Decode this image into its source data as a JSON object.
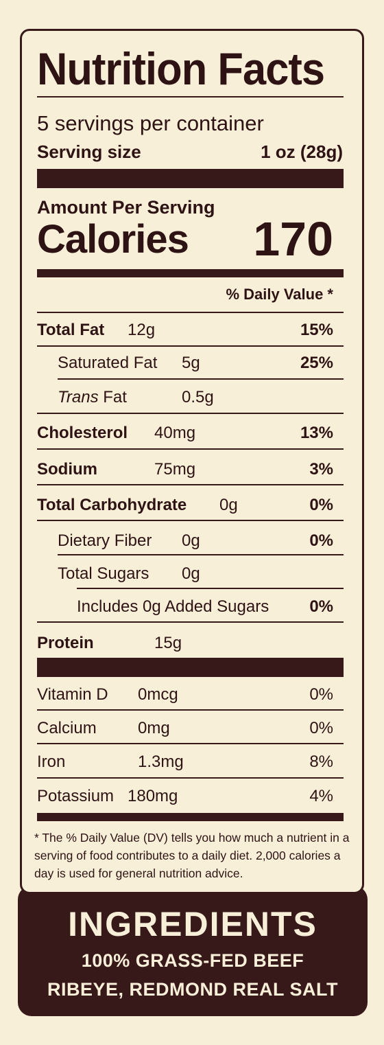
{
  "label": {
    "title": "Nutrition Facts",
    "servings_per_container": "5 servings per container",
    "serving_size_label": "Serving size",
    "serving_size_value": "1 oz (28g)",
    "amount_per_serving": "Amount Per Serving",
    "calories_label": "Calories",
    "calories_value": "170",
    "daily_value_header": "% Daily Value *",
    "nutrients": [
      {
        "name": "Total Fat",
        "amount": "12g",
        "dv": "15%"
      },
      {
        "name": "Saturated Fat",
        "amount": "5g",
        "dv": "25%"
      },
      {
        "name_italic": "Trans",
        "name_rest": " Fat",
        "amount": "0.5g",
        "dv": ""
      },
      {
        "name": "Cholesterol",
        "amount": "40mg",
        "dv": "13%"
      },
      {
        "name": "Sodium",
        "amount": "75mg",
        "dv": "3%"
      },
      {
        "name": "Total Carbohydrate",
        "amount": "0g",
        "dv": "0%"
      },
      {
        "name": "Dietary Fiber",
        "amount": "0g",
        "dv": "0%"
      },
      {
        "name": "Total Sugars",
        "amount": "0g",
        "dv": ""
      },
      {
        "name": "Includes 0g Added Sugars",
        "amount": "",
        "dv": "0%"
      },
      {
        "name": "Protein",
        "amount": "15g",
        "dv": ""
      }
    ],
    "vitamins": [
      {
        "name": "Vitamin D",
        "amount": "0mcg",
        "dv": "0%"
      },
      {
        "name": "Calcium",
        "amount": "0mg",
        "dv": "0%"
      },
      {
        "name": "Iron",
        "amount": "1.3mg",
        "dv": "8%"
      },
      {
        "name": "Potassium",
        "amount": "180mg",
        "dv": "4%"
      }
    ],
    "footnote": "* The % Daily Value (DV) tells you how much a nutrient in a serving of food contributes to a daily diet. 2,000 calories a day is used for general nutrition advice."
  },
  "ingredients": {
    "title": "INGREDIENTS",
    "line1": "100% GRASS-FED BEEF",
    "line2": "RIBEYE, REDMOND REAL SALT"
  },
  "colors": {
    "background": "#f8efd9",
    "ink": "#38191a"
  }
}
